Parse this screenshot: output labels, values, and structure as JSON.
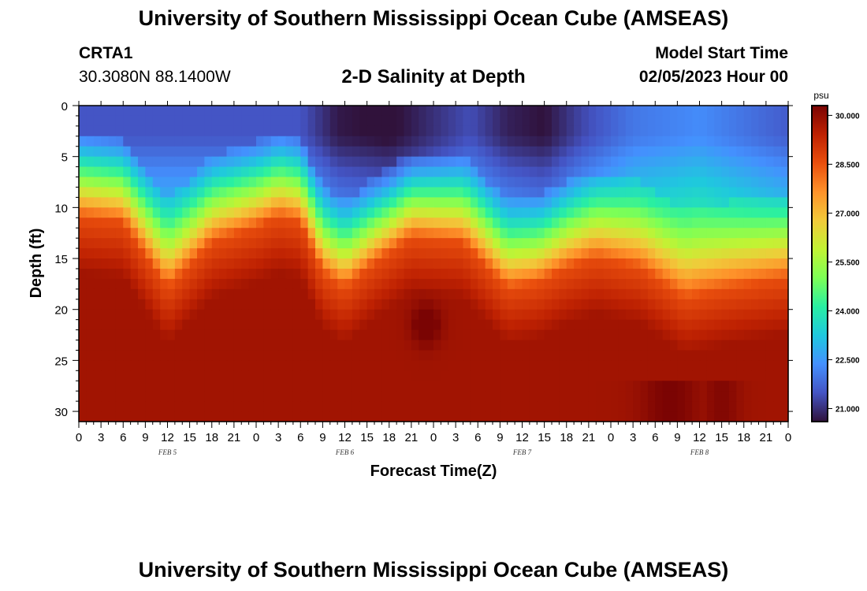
{
  "header": {
    "title": "University of Southern Mississippi Ocean Cube (AMSEAS)",
    "station": "CRTA1",
    "coords": "30.3080N  88.1400W",
    "subtitle": "2-D Salinity at Depth",
    "model_start_label": "Model Start Time",
    "model_start_value": "02/05/2023 Hour 00"
  },
  "footer": {
    "title": "University of Southern Mississippi Ocean Cube (AMSEAS)"
  },
  "chart_data": {
    "type": "heatmap",
    "title": "2-D Salinity at Depth",
    "xlabel": "Forecast Time(Z)",
    "ylabel": "Depth (ft)",
    "x_tick_labels": [
      "0",
      "3",
      "6",
      "9",
      "12",
      "15",
      "18",
      "21",
      "0",
      "3",
      "6",
      "9",
      "12",
      "15",
      "18",
      "21",
      "0",
      "3",
      "6",
      "9",
      "12",
      "15",
      "18",
      "21",
      "0",
      "3",
      "6",
      "9",
      "12",
      "15",
      "18",
      "21",
      "0"
    ],
    "x_range_hours": [
      0,
      96
    ],
    "y_ticks": [
      0,
      5,
      10,
      15,
      20,
      25,
      30
    ],
    "y_range_ft": [
      0,
      31
    ],
    "date_labels": [
      {
        "label": "FEB 5",
        "hour": 12
      },
      {
        "label": "FEB 6",
        "hour": 36
      },
      {
        "label": "FEB 7",
        "hour": 60
      },
      {
        "label": "FEB 8",
        "hour": 84
      }
    ],
    "halocline_depth_ft": [
      {
        "hour": 0,
        "depth": 8.5
      },
      {
        "hour": 6,
        "depth": 9
      },
      {
        "hour": 12,
        "depth": 15.5
      },
      {
        "hour": 18,
        "depth": 11
      },
      {
        "hour": 24,
        "depth": 9.5
      },
      {
        "hour": 27,
        "depth": 8.5
      },
      {
        "hour": 30,
        "depth": 9
      },
      {
        "hour": 33,
        "depth": 14
      },
      {
        "hour": 36,
        "depth": 15.5
      },
      {
        "hour": 40,
        "depth": 13
      },
      {
        "hour": 45,
        "depth": 10.5
      },
      {
        "hour": 52,
        "depth": 11
      },
      {
        "hour": 58,
        "depth": 15.5
      },
      {
        "hour": 62,
        "depth": 15
      },
      {
        "hour": 66,
        "depth": 13.5
      },
      {
        "hour": 70,
        "depth": 12.5
      },
      {
        "hour": 76,
        "depth": 13.5
      },
      {
        "hour": 82,
        "depth": 16.5
      },
      {
        "hour": 88,
        "depth": 15.5
      },
      {
        "hour": 96,
        "depth": 14.5
      }
    ],
    "surface_salinity_psu": [
      {
        "hour": 0,
        "value": 21.5
      },
      {
        "hour": 30,
        "value": 21.5
      },
      {
        "hour": 35,
        "value": 20.7
      },
      {
        "hour": 42,
        "value": 20.5
      },
      {
        "hour": 48,
        "value": 21.0
      },
      {
        "hour": 53,
        "value": 21.4
      },
      {
        "hour": 58,
        "value": 20.8
      },
      {
        "hour": 63,
        "value": 20.6
      },
      {
        "hour": 68,
        "value": 21.3
      },
      {
        "hour": 75,
        "value": 22.0
      },
      {
        "hour": 84,
        "value": 22.3
      },
      {
        "hour": 96,
        "value": 21.6
      }
    ],
    "colorbar": {
      "unit": "psu",
      "min": 20.6,
      "max": 30.3,
      "ticks": [
        "30.000",
        "28.500",
        "27.000",
        "25.500",
        "24.000",
        "22.500",
        "21.000"
      ],
      "tick_values": [
        30.0,
        28.5,
        27.0,
        25.5,
        24.0,
        22.5,
        21.0
      ]
    }
  },
  "colors": {
    "colormap": [
      "#30123b",
      "#4454c4",
      "#4490fe",
      "#1fc8de",
      "#29efa2",
      "#7dff56",
      "#c1f334",
      "#f1ca3a",
      "#fe922a",
      "#ea4f0d",
      "#be2102",
      "#7a0403"
    ]
  }
}
